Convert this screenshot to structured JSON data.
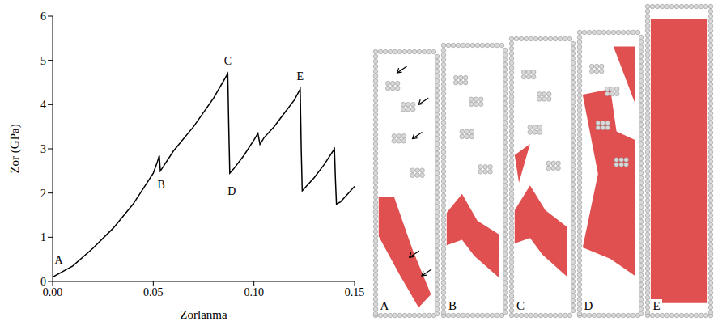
{
  "chart_data": {
    "type": "line",
    "x_label": "Zorlanma",
    "y_label": "Zor (GPa)",
    "xlim": [
      0,
      0.15
    ],
    "xticks": [
      {
        "value": 0,
        "label": "0.00"
      },
      {
        "value": 0.05,
        "label": "0.05"
      },
      {
        "value": 0.1,
        "label": "0.10"
      },
      {
        "value": 0.15,
        "label": "0.15"
      }
    ],
    "ylim": [
      0,
      6
    ],
    "yticks": [
      0,
      1,
      2,
      3,
      4,
      5,
      6
    ],
    "grid": false,
    "color": "#000000",
    "x": [
      0,
      0.01,
      0.02,
      0.03,
      0.04,
      0.05,
      0.052,
      0.053,
      0.0535,
      0.055,
      0.06,
      0.07,
      0.08,
      0.087,
      0.0875,
      0.088,
      0.09,
      0.095,
      0.1,
      0.102,
      0.103,
      0.105,
      0.11,
      0.115,
      0.12,
      0.123,
      0.1235,
      0.124,
      0.126,
      0.13,
      0.135,
      0.14,
      0.1405,
      0.141,
      0.143,
      0.145,
      0.15
    ],
    "values": [
      0.1,
      0.35,
      0.75,
      1.2,
      1.75,
      2.45,
      2.7,
      2.85,
      2.5,
      2.6,
      2.95,
      3.5,
      4.15,
      4.7,
      3.5,
      2.45,
      2.55,
      2.85,
      3.2,
      3.35,
      3.1,
      3.25,
      3.5,
      3.8,
      4.1,
      4.35,
      3.0,
      2.05,
      2.15,
      2.35,
      2.65,
      3.0,
      2.3,
      1.75,
      1.8,
      1.9,
      2.15
    ],
    "annotations": [
      {
        "text": "A",
        "x": 0.003,
        "y": 0.5
      },
      {
        "text": "B",
        "x": 0.054,
        "y": 2.2
      },
      {
        "text": "C",
        "x": 0.087,
        "y": 5.0
      },
      {
        "text": "D",
        "x": 0.089,
        "y": 2.05
      },
      {
        "text": "E",
        "x": 0.123,
        "y": 4.65
      }
    ]
  },
  "panels": [
    "A",
    "B",
    "C",
    "D",
    "E"
  ]
}
